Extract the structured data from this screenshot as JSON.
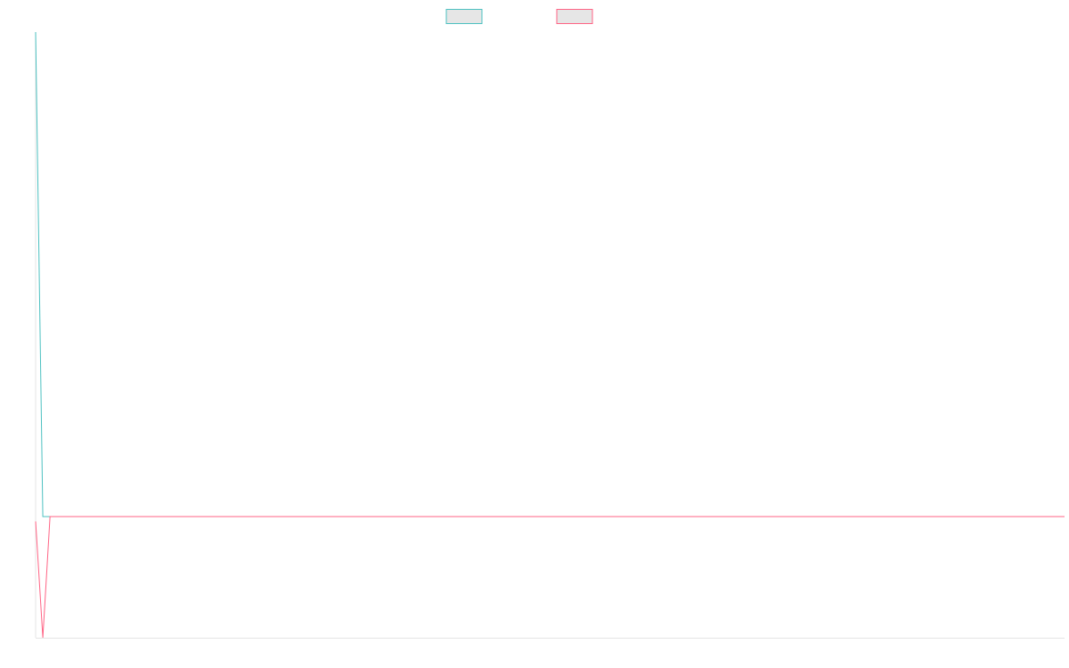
{
  "chart_data": {
    "type": "line",
    "title": "",
    "xlabel": "",
    "ylabel": "",
    "grid": false,
    "legend_position": "top-center",
    "x": [
      0,
      1,
      2,
      3,
      4,
      5,
      6,
      7,
      8,
      9,
      10,
      11,
      12,
      13,
      14,
      15,
      16,
      17,
      18,
      19,
      20,
      21,
      22,
      23,
      24,
      25,
      26,
      27,
      28,
      29,
      30,
      31,
      32,
      33,
      34,
      35,
      36,
      37,
      38,
      39,
      40,
      41,
      42,
      43,
      44,
      45,
      46,
      47,
      48,
      49,
      50,
      51,
      52,
      53,
      54,
      55,
      56,
      57,
      58,
      59,
      60,
      61,
      62,
      63,
      64,
      65,
      66,
      67,
      68,
      69,
      70,
      71,
      72,
      73,
      74,
      75,
      76,
      77,
      78,
      79,
      80,
      81,
      82,
      83,
      84,
      85,
      86,
      87,
      88,
      89,
      90,
      91,
      92,
      93,
      94,
      95,
      96,
      97,
      98,
      99,
      100,
      101,
      102,
      103,
      104,
      105,
      106,
      107,
      108,
      109,
      110,
      111,
      112,
      113,
      114,
      115,
      116,
      117,
      118,
      119,
      120,
      121,
      122,
      123,
      124,
      125,
      126,
      127,
      128,
      129,
      130,
      131,
      132,
      133,
      134,
      135,
      136,
      137,
      138,
      139,
      140,
      141,
      142,
      143
    ],
    "xlim": [
      0,
      143
    ],
    "ylim": [
      -0.25,
      1
    ],
    "series": [
      {
        "name": "",
        "color": "#4bc0c0",
        "values": [
          1,
          0,
          0,
          0,
          0,
          0,
          0,
          0,
          0,
          0,
          0,
          0,
          0,
          0,
          0,
          0,
          0,
          0,
          0,
          0,
          0,
          0,
          0,
          0,
          0,
          0,
          0,
          0,
          0,
          0,
          0,
          0,
          0,
          0,
          0,
          0,
          0,
          0,
          0,
          0,
          0,
          0,
          0,
          0,
          0,
          0,
          0,
          0,
          0,
          0,
          0,
          0,
          0,
          0,
          0,
          0,
          0,
          0,
          0,
          0,
          0,
          0,
          0,
          0,
          0,
          0,
          0,
          0,
          0,
          0,
          0,
          0,
          0,
          0,
          0,
          0,
          0,
          0,
          0,
          0,
          0,
          0,
          0,
          0,
          0,
          0,
          0,
          0,
          0,
          0,
          0,
          0,
          0,
          0,
          0,
          0,
          0,
          0,
          0,
          0,
          0,
          0,
          0,
          0,
          0,
          0,
          0,
          0,
          0,
          0,
          0,
          0,
          0,
          0,
          0,
          0,
          0,
          0,
          0,
          0,
          0,
          0,
          0,
          0,
          0,
          0,
          0,
          0,
          0,
          0,
          0,
          0,
          0,
          0,
          0,
          0,
          0,
          0,
          0,
          0,
          0,
          0,
          0,
          0
        ]
      },
      {
        "name": "",
        "color": "#ff6384",
        "values": [
          -0.01,
          -0.25,
          0,
          0,
          0,
          0,
          0,
          0,
          0,
          0,
          0,
          0,
          0,
          0,
          0,
          0,
          0,
          0,
          0,
          0,
          0,
          0,
          0,
          0,
          0,
          0,
          0,
          0,
          0,
          0,
          0,
          0,
          0,
          0,
          0,
          0,
          0,
          0,
          0,
          0,
          0,
          0,
          0,
          0,
          0,
          0,
          0,
          0,
          0,
          0,
          0,
          0,
          0,
          0,
          0,
          0,
          0,
          0,
          0,
          0,
          0,
          0,
          0,
          0,
          0,
          0,
          0,
          0,
          0,
          0,
          0,
          0,
          0,
          0,
          0,
          0,
          0,
          0,
          0,
          0,
          0,
          0,
          0,
          0,
          0,
          0,
          0,
          0,
          0,
          0,
          0,
          0,
          0,
          0,
          0,
          0,
          0,
          0,
          0,
          0,
          0,
          0,
          0,
          0,
          0,
          0,
          0,
          0,
          0,
          0,
          0,
          0,
          0,
          0,
          0,
          0,
          0,
          0,
          0,
          0,
          0,
          0,
          0,
          0,
          0,
          0,
          0,
          0,
          0,
          0,
          0,
          0,
          0,
          0,
          0,
          0,
          0,
          0,
          0,
          0,
          0,
          0,
          0,
          0
        ]
      }
    ]
  },
  "legend": {
    "items": [
      {
        "label": "",
        "color": "#4bc0c0"
      },
      {
        "label": "",
        "color": "#ff6384"
      }
    ]
  }
}
